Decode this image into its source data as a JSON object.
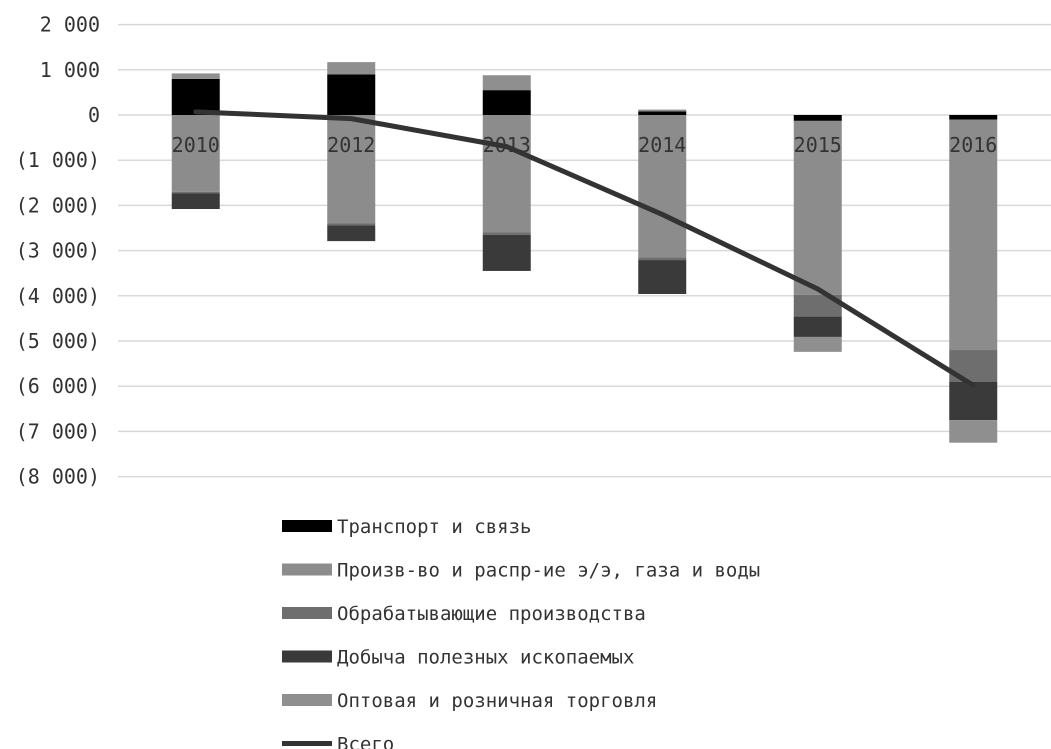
{
  "chart_data": {
    "type": "bar",
    "stacked": true,
    "categories": [
      "2010",
      "2012",
      "2013",
      "2014",
      "2015",
      "2016"
    ],
    "ylim": [
      -8000,
      2000
    ],
    "yticks": [
      2000,
      1000,
      0,
      -1000,
      -2000,
      -3000,
      -4000,
      -5000,
      -6000,
      -7000,
      -8000
    ],
    "ytick_labels": [
      "2 000",
      "1 000",
      "0",
      "(1 000)",
      "(2 000)",
      "(3 000)",
      "(4 000)",
      "(5 000)",
      "(6 000)",
      "(7 000)",
      "(8 000)"
    ],
    "grid": true,
    "legend_position": "bottom",
    "series": [
      {
        "name": "Транспорт и связь",
        "color": "#000000",
        "values": [
          800,
          900,
          550,
          80,
          -130,
          -100
        ]
      },
      {
        "name": "Произв-во и распр-ие э/э, газа и воды",
        "color": "#8c8c8c",
        "values": [
          -1700,
          -2400,
          -2600,
          -3150,
          -3850,
          -5100
        ]
      },
      {
        "name": "Обрабатывающие производства",
        "color": "#6e6e6e",
        "values": [
          -30,
          -40,
          -50,
          -60,
          -480,
          -700
        ]
      },
      {
        "name": "Добыча полезных ископаемых",
        "color": "#3a3a3a",
        "values": [
          -350,
          -350,
          -800,
          -750,
          -450,
          -850
        ]
      },
      {
        "name": "Оптовая и розничная торговля",
        "color": "#8f8f8f",
        "values": [
          120,
          270,
          330,
          40,
          -330,
          -500
        ]
      },
      {
        "name": "Всего",
        "type": "line",
        "color": "#333333",
        "values": [
          70,
          -80,
          -700,
          -2200,
          -3850,
          -5980
        ]
      }
    ]
  }
}
